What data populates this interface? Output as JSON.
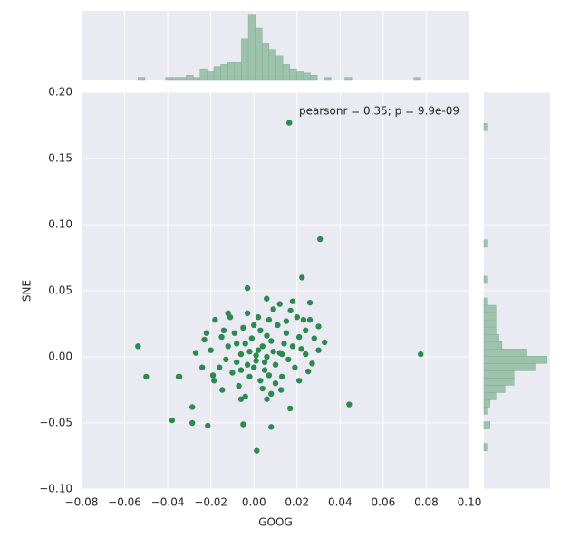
{
  "chart_data": [
    {
      "type": "scatter",
      "x_label": "GOOG",
      "y_label": "SNE",
      "annotation": "pearsonr = 0.35; p = 9.9e-09",
      "color": "#2a8a50",
      "xlim": [
        -0.08,
        0.1
      ],
      "ylim": [
        -0.1,
        0.2
      ],
      "grid": true,
      "xticks": [
        {
          "value": -0.08,
          "label": "−0.08"
        },
        {
          "value": -0.06,
          "label": "−0.06"
        },
        {
          "value": -0.04,
          "label": "−0.04"
        },
        {
          "value": -0.02,
          "label": "−0.02"
        },
        {
          "value": 0,
          "label": "0.00"
        },
        {
          "value": 0.02,
          "label": "0.02"
        },
        {
          "value": 0.04,
          "label": "0.04"
        },
        {
          "value": 0.06,
          "label": "0.06"
        },
        {
          "value": 0.08,
          "label": "0.08"
        },
        {
          "value": 0.1,
          "label": "0.10"
        }
      ],
      "yticks": [
        {
          "value": -0.1,
          "label": "−0.10"
        },
        {
          "value": -0.05,
          "label": "−0.05"
        },
        {
          "value": 0,
          "label": "0.00"
        },
        {
          "value": 0.05,
          "label": "0.05"
        },
        {
          "value": 0.1,
          "label": "0.10"
        },
        {
          "value": 0.15,
          "label": "0.15"
        },
        {
          "value": 0.2,
          "label": "0.20"
        }
      ],
      "x": [
        0.0164,
        0.0307,
        0.0223,
        -0.0538,
        -0.05,
        -0.035,
        -0.0345,
        0.0774,
        0.0442,
        -0.038,
        -0.0286,
        -0.0286,
        -0.0214,
        -0.005,
        0.008,
        0.0013,
        0.0168,
        0.0328,
        0.03,
        0.026,
        -0.003,
        0.0059,
        -0.012,
        -0.027,
        -0.023,
        -0.024,
        -0.0185,
        -0.0147,
        -0.006,
        0.006,
        0.0126,
        0.021,
        0.0252,
        0.002,
        -0.004,
        0.008,
        -0.008,
        0.012,
        0.005,
        -0.002,
        0.015,
        -0.012,
        0.003,
        0.01,
        -0.006,
        0.018,
        0.001,
        -0.01,
        0.007,
        0.02,
        -0.015,
        0.013,
        -0.003,
        0.024,
        0.009,
        -0.018,
        0.004,
        -0.007,
        0.016,
        0.022,
        -0.001,
        0.011,
        -0.013,
        0.006,
        -0.005,
        0.017,
        0.026,
        0.028,
        -0.02,
        -0.016,
        0.0,
        0.014,
        -0.009,
        0.003,
        0.019,
        -0.004,
        0.008,
        0.012,
        -0.011,
        0.021,
        0.002,
        -0.002,
        0.004,
        0.001,
        -0.006,
        0.009,
        0.006,
        -0.014,
        0.024,
        0.0,
        0.015,
        -0.008,
        0.01,
        0.018,
        0.023,
        0.005,
        -0.003,
        0.007,
        -0.019,
        0.03,
        0.027,
        -0.022,
        0.013
      ],
      "y": [
        0.177,
        0.089,
        0.06,
        0.008,
        -0.015,
        -0.015,
        -0.015,
        0.002,
        -0.036,
        -0.048,
        -0.05,
        -0.038,
        -0.052,
        -0.051,
        -0.053,
        -0.071,
        -0.039,
        0.011,
        0.023,
        0.041,
        0.052,
        0.044,
        0.033,
        0.003,
        0.013,
        -0.008,
        -0.018,
        -0.025,
        -0.032,
        -0.032,
        -0.025,
        -0.018,
        -0.011,
        0.005,
        0.01,
        0.012,
        -0.004,
        0.003,
        -0.01,
        -0.015,
        0.018,
        0.008,
        0.02,
        -0.006,
        0.002,
        0.008,
        -0.003,
        -0.012,
        0.028,
        0.03,
        0.015,
        -0.015,
        0.033,
        0.02,
        0.036,
        0.028,
        -0.024,
        -0.022,
        -0.002,
        0.006,
        0.014,
        0.024,
        -0.002,
        0.0,
        0.022,
        0.035,
        0.028,
        0.014,
        0.005,
        -0.008,
        -0.008,
        0.01,
        0.018,
        -0.018,
        -0.008,
        -0.03,
        -0.028,
        0.04,
        0.03,
        0.015,
        0.03,
        0.004,
        0.008,
        0.001,
        -0.01,
        0.004,
        0.016,
        0.02,
        0.002,
        0.024,
        0.027,
        0.01,
        -0.02,
        0.042,
        0.028,
        -0.004,
        -0.006,
        -0.014,
        -0.014,
        0.005,
        -0.005,
        0.018,
        0.002
      ]
    },
    {
      "type": "histogram",
      "color": "#9dc3ac",
      "ylim": [
        0,
        32
      ],
      "bins": [
        -0.0538,
        -0.0506,
        -0.0474,
        -0.0442,
        -0.041,
        -0.0378,
        -0.0346,
        -0.0314,
        -0.0282,
        -0.025,
        -0.0218,
        -0.0186,
        -0.0154,
        -0.0122,
        -0.009,
        -0.0058,
        -0.0026,
        0.0006,
        0.0038,
        0.007,
        0.0102,
        0.0134,
        0.0166,
        0.0198,
        0.023,
        0.0262,
        0.0294,
        0.0326,
        0.0358,
        0.039,
        0.0422,
        0.0454,
        0.0486,
        0.0518,
        0.055,
        0.0582,
        0.0614,
        0.0646,
        0.0678,
        0.071,
        0.0742,
        0.0774
      ],
      "values": [
        1,
        0,
        0,
        0,
        1,
        1,
        1,
        2,
        1,
        5,
        4,
        6,
        7,
        8,
        8,
        19,
        30,
        24,
        17,
        14,
        11,
        7,
        5,
        4,
        3,
        2,
        0,
        1,
        0,
        0,
        1,
        0,
        0,
        0,
        0,
        0,
        0,
        0,
        0,
        0,
        1
      ]
    },
    {
      "type": "histogram-horizontal",
      "color": "#9dc3ac",
      "xlim": [
        0,
        22
      ],
      "bins": [
        -0.071,
        -0.0655,
        -0.06,
        -0.0545,
        -0.049,
        -0.0435,
        -0.038,
        -0.0325,
        -0.027,
        -0.0215,
        -0.016,
        -0.0105,
        -0.005,
        0.0005,
        0.006,
        0.0115,
        0.017,
        0.0225,
        0.028,
        0.0335,
        0.039,
        0.0445,
        0.05,
        0.0555,
        0.061,
        0.0665,
        0.072,
        0.0775,
        0.083,
        0.0885,
        0.094,
        0.0995,
        0.105,
        0.1105,
        0.116,
        0.1215,
        0.127,
        0.1325,
        0.138,
        0.1435,
        0.149,
        0.1545,
        0.16,
        0.1655,
        0.171,
        0.1765
      ],
      "values": [
        1,
        0,
        0,
        2,
        0,
        1,
        2,
        4,
        7,
        10,
        10,
        17,
        21,
        14,
        6,
        5,
        4,
        4,
        4,
        4,
        1,
        0,
        0,
        1,
        0,
        0,
        0,
        0,
        1,
        0,
        0,
        0,
        0,
        0,
        0,
        0,
        0,
        0,
        0,
        0,
        0,
        0,
        0,
        0,
        1
      ]
    }
  ]
}
